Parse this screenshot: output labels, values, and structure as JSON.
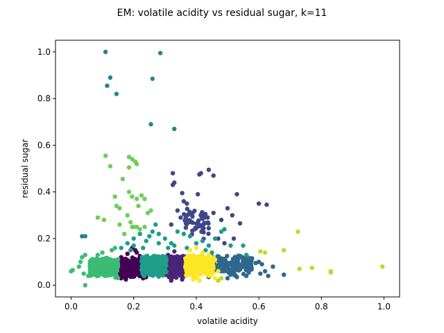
{
  "chart_data": {
    "type": "scatter",
    "title": "EM: volatile acidity vs residual sugar, k=11",
    "xlabel": "volatile acidity",
    "ylabel": "residual sugar",
    "xlim": [
      -0.05,
      1.05
    ],
    "ylim": [
      -0.05,
      1.05
    ],
    "xticks": [
      {
        "value": 0.0,
        "label": "0.0"
      },
      {
        "value": 0.2,
        "label": "0.2"
      },
      {
        "value": 0.4,
        "label": "0.4"
      },
      {
        "value": 0.6,
        "label": "0.6"
      },
      {
        "value": 0.8,
        "label": "0.8"
      },
      {
        "value": 1.0,
        "label": "1.0"
      }
    ],
    "yticks": [
      {
        "value": 0.0,
        "label": "0.0"
      },
      {
        "value": 0.2,
        "label": "0.2"
      },
      {
        "value": 0.4,
        "label": "0.4"
      },
      {
        "value": 0.6,
        "label": "0.6"
      },
      {
        "value": 0.8,
        "label": "0.8"
      },
      {
        "value": 1.0,
        "label": "1.0"
      }
    ],
    "grid": false,
    "legend": "none",
    "marker_size_pt": 5.5,
    "series": [
      {
        "color": "#440154",
        "cluster": {
          "x": [
            0.15,
            0.245
          ],
          "y": [
            0.025,
            0.12
          ],
          "count": 450
        },
        "points": [
          [
            0.145,
            0.07
          ],
          [
            0.16,
            0.12
          ],
          [
            0.18,
            0.135
          ],
          [
            0.195,
            0.16
          ],
          [
            0.205,
            0.15
          ],
          [
            0.22,
            0.125
          ],
          [
            0.24,
            0.11
          ],
          [
            0.25,
            0.06
          ],
          [
            0.16,
            0.03
          ],
          [
            0.175,
            0.025
          ],
          [
            0.23,
            0.03
          ],
          [
            0.15,
            0.1
          ],
          [
            0.21,
            0.14
          ]
        ]
      },
      {
        "color": "#482576",
        "cluster": {
          "x": [
            0.3,
            0.37
          ],
          "y": [
            0.025,
            0.13
          ],
          "count": 300
        },
        "points": [
          [
            0.295,
            0.09
          ],
          [
            0.31,
            0.13
          ],
          [
            0.33,
            0.145
          ],
          [
            0.345,
            0.12
          ],
          [
            0.365,
            0.11
          ],
          [
            0.37,
            0.05
          ],
          [
            0.32,
            0.02
          ],
          [
            0.355,
            0.025
          ]
        ]
      },
      {
        "color": "#3f4788",
        "cluster": {
          "x": [
            0.36,
            0.44
          ],
          "y": [
            0.19,
            0.33
          ],
          "count": 55
        },
        "points": [
          [
            0.325,
            0.43
          ],
          [
            0.325,
            0.48
          ],
          [
            0.33,
            0.44
          ],
          [
            0.355,
            0.395
          ],
          [
            0.36,
            0.36
          ],
          [
            0.37,
            0.35
          ],
          [
            0.405,
            0.39
          ],
          [
            0.41,
            0.475
          ],
          [
            0.415,
            0.48
          ],
          [
            0.44,
            0.495
          ],
          [
            0.455,
            0.47
          ],
          [
            0.53,
            0.39
          ],
          [
            0.54,
            0.265
          ],
          [
            0.6,
            0.35
          ],
          [
            0.625,
            0.345
          ],
          [
            0.515,
            0.3
          ],
          [
            0.5,
            0.33
          ],
          [
            0.48,
            0.28
          ],
          [
            0.455,
            0.31
          ],
          [
            0.35,
            0.29
          ],
          [
            0.32,
            0.26
          ],
          [
            0.34,
            0.32
          ],
          [
            0.47,
            0.2
          ],
          [
            0.49,
            0.18
          ],
          [
            0.52,
            0.2
          ]
        ]
      },
      {
        "color": "#30678d",
        "cluster": {
          "x": [
            0.43,
            0.58
          ],
          "y": [
            0.03,
            0.13
          ],
          "count": 160
        },
        "points": [
          [
            0.59,
            0.095
          ],
          [
            0.61,
            0.09
          ],
          [
            0.62,
            0.06
          ],
          [
            0.605,
            0.05
          ],
          [
            0.63,
            0.04
          ],
          [
            0.645,
            0.08
          ],
          [
            0.68,
            0.045
          ],
          [
            0.6,
            0.1
          ],
          [
            0.57,
            0.09
          ],
          [
            0.56,
            0.04
          ],
          [
            0.53,
            0.035
          ],
          [
            0.5,
            0.03
          ],
          [
            0.44,
            0.035
          ]
        ]
      },
      {
        "color": "#25838e",
        "points": [
          [
            0.11,
            1.0
          ],
          [
            0.285,
            0.995
          ],
          [
            0.125,
            0.89
          ],
          [
            0.26,
            0.885
          ],
          [
            0.115,
            0.855
          ],
          [
            0.145,
            0.82
          ],
          [
            0.255,
            0.69
          ],
          [
            0.33,
            0.67
          ],
          [
            0.035,
            0.21
          ],
          [
            0.045,
            0.21
          ]
        ]
      },
      {
        "color": "#1e9d89",
        "cluster": {
          "x": [
            0.225,
            0.305
          ],
          "y": [
            0.025,
            0.13
          ],
          "count": 320
        },
        "points": [
          [
            0.16,
            0.16
          ],
          [
            0.18,
            0.18
          ],
          [
            0.2,
            0.2
          ],
          [
            0.22,
            0.22
          ],
          [
            0.24,
            0.19
          ],
          [
            0.26,
            0.23
          ],
          [
            0.27,
            0.26
          ],
          [
            0.28,
            0.22
          ],
          [
            0.3,
            0.2
          ],
          [
            0.32,
            0.18
          ],
          [
            0.34,
            0.23
          ],
          [
            0.36,
            0.22
          ],
          [
            0.38,
            0.21
          ],
          [
            0.4,
            0.18
          ],
          [
            0.42,
            0.19
          ],
          [
            0.44,
            0.17
          ],
          [
            0.46,
            0.2
          ],
          [
            0.48,
            0.23
          ],
          [
            0.49,
            0.24
          ],
          [
            0.51,
            0.17
          ],
          [
            0.55,
            0.17
          ],
          [
            0.56,
            0.13
          ],
          [
            0.2,
            0.17
          ],
          [
            0.25,
            0.21
          ],
          [
            0.31,
            0.16
          ],
          [
            0.33,
            0.17
          ],
          [
            0.37,
            0.16
          ],
          [
            0.43,
            0.15
          ],
          [
            0.45,
            0.14
          ],
          [
            0.19,
            0.15
          ],
          [
            0.23,
            0.16
          ],
          [
            0.28,
            0.18
          ]
        ]
      },
      {
        "color": "#3cbb75",
        "cluster": {
          "x": [
            0.06,
            0.15
          ],
          "y": [
            0.025,
            0.12
          ],
          "count": 380
        },
        "points": [
          [
            0.0,
            0.06
          ],
          [
            0.005,
            0.065
          ],
          [
            0.025,
            0.08
          ],
          [
            0.03,
            0.1
          ],
          [
            0.035,
            0.12
          ],
          [
            0.045,
            0.13
          ],
          [
            0.045,
            0.0
          ],
          [
            0.055,
            0.04
          ],
          [
            0.04,
            0.05
          ],
          [
            0.085,
            0.13
          ],
          [
            0.1,
            0.14
          ],
          [
            0.13,
            0.15
          ],
          [
            0.14,
            0.16
          ]
        ]
      },
      {
        "color": "#6ece58",
        "points": [
          [
            0.11,
            0.555
          ],
          [
            0.125,
            0.51
          ],
          [
            0.185,
            0.55
          ],
          [
            0.195,
            0.54
          ],
          [
            0.205,
            0.53
          ],
          [
            0.21,
            0.52
          ],
          [
            0.185,
            0.505
          ],
          [
            0.165,
            0.455
          ],
          [
            0.185,
            0.4
          ],
          [
            0.195,
            0.38
          ],
          [
            0.21,
            0.37
          ],
          [
            0.215,
            0.34
          ],
          [
            0.225,
            0.385
          ],
          [
            0.235,
            0.37
          ],
          [
            0.245,
            0.31
          ],
          [
            0.255,
            0.32
          ],
          [
            0.14,
            0.38
          ],
          [
            0.145,
            0.34
          ],
          [
            0.155,
            0.33
          ],
          [
            0.18,
            0.3
          ],
          [
            0.19,
            0.27
          ],
          [
            0.195,
            0.25
          ],
          [
            0.2,
            0.25
          ],
          [
            0.21,
            0.25
          ],
          [
            0.22,
            0.24
          ],
          [
            0.235,
            0.25
          ],
          [
            0.155,
            0.26
          ],
          [
            0.085,
            0.29
          ],
          [
            0.105,
            0.28
          ],
          [
            0.17,
            0.22
          ]
        ]
      },
      {
        "color": "#b5de2b",
        "points": [
          [
            0.725,
            0.23
          ],
          [
            0.68,
            0.15
          ],
          [
            0.62,
            0.14
          ],
          [
            0.605,
            0.145
          ],
          [
            0.73,
            0.07
          ],
          [
            0.77,
            0.075
          ],
          [
            0.83,
            0.06
          ],
          [
            0.83,
            0.055
          ],
          [
            0.995,
            0.08
          ],
          [
            0.48,
            0.03
          ],
          [
            0.47,
            0.02
          ]
        ]
      },
      {
        "color": "#fde725",
        "cluster": {
          "x": [
            0.365,
            0.455
          ],
          "y": [
            0.025,
            0.13
          ],
          "count": 300
        },
        "points": [
          [
            0.38,
            0.15
          ],
          [
            0.4,
            0.16
          ],
          [
            0.42,
            0.14
          ],
          [
            0.44,
            0.13
          ],
          [
            0.46,
            0.11
          ],
          [
            0.47,
            0.06
          ],
          [
            0.46,
            0.03
          ],
          [
            0.41,
            0.02
          ],
          [
            0.39,
            0.025
          ]
        ]
      }
    ]
  }
}
